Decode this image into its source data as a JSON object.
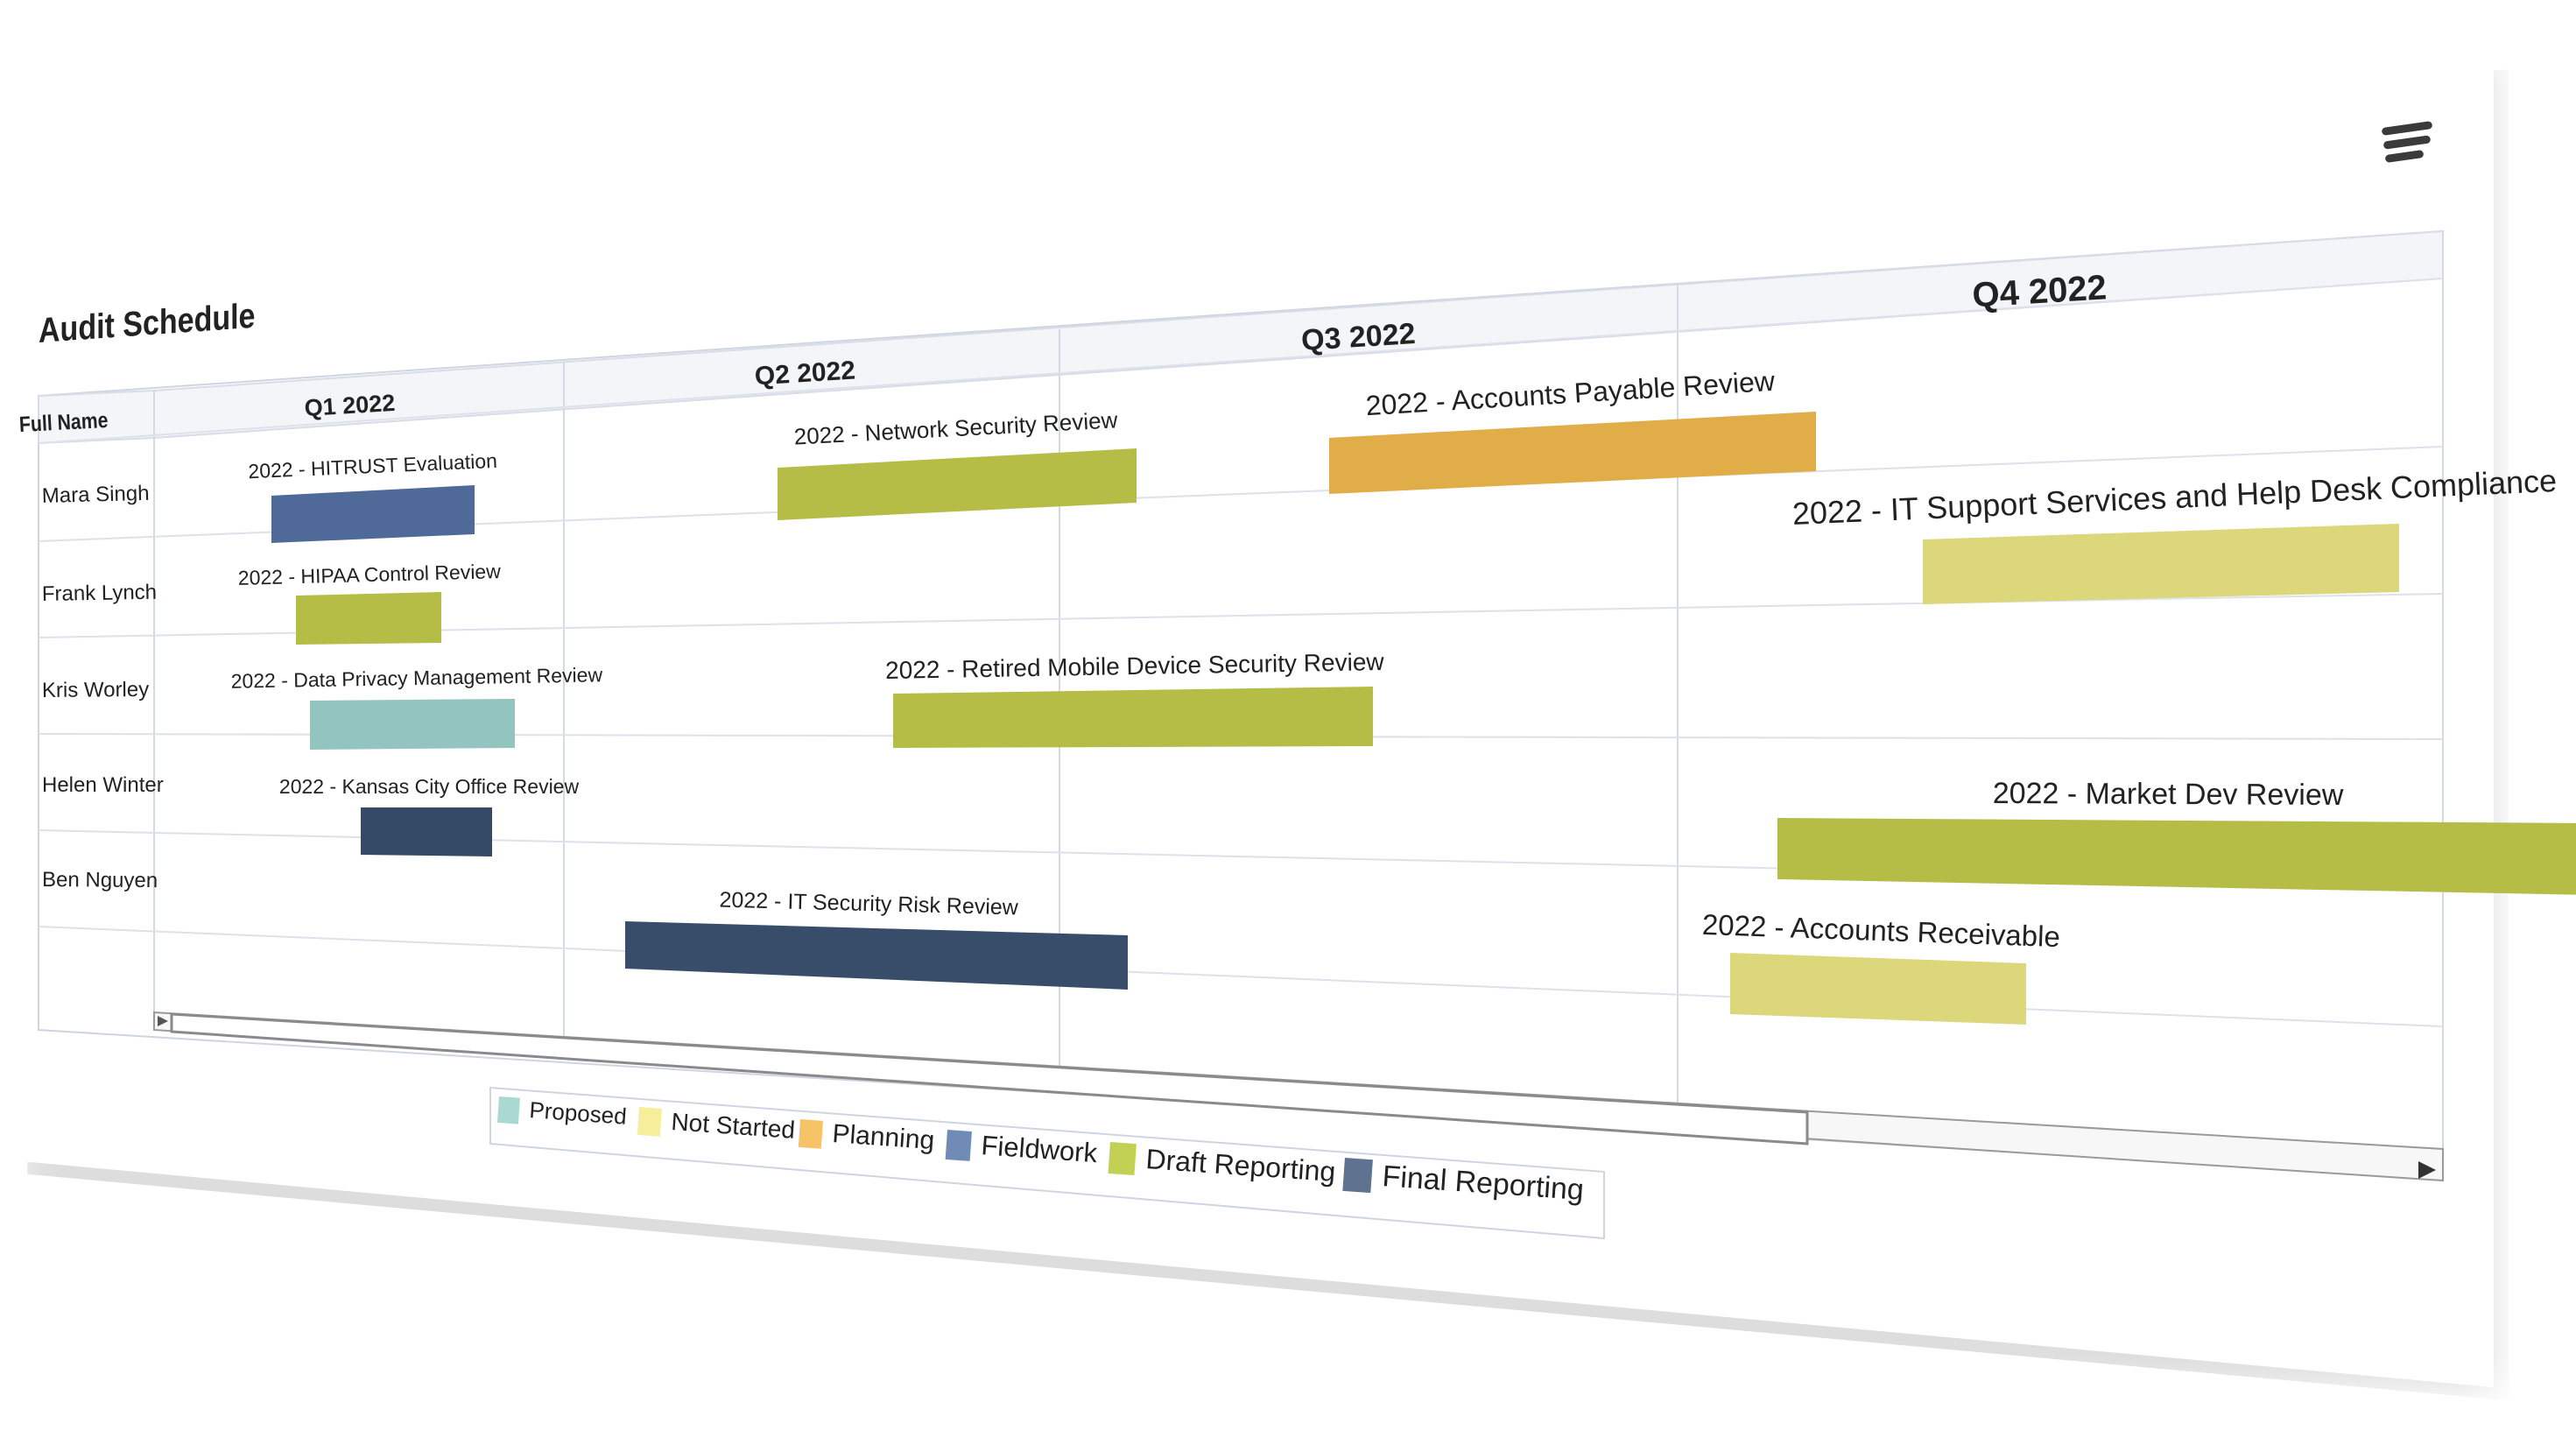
{
  "title": "Audit Schedule",
  "columns": {
    "name_header": "Full Name"
  },
  "quarters": [
    "Q1 2022",
    "Q2 2022",
    "Q3 2022",
    "Q4 2022"
  ],
  "people": [
    "Mara Singh",
    "Frank Lynch",
    "Kris Worley",
    "Helen Winter",
    "Ben Nguyen"
  ],
  "statuses": [
    {
      "name": "Proposed",
      "color": "#a9d9d2"
    },
    {
      "name": "Not Started",
      "color": "#f7ee9c"
    },
    {
      "name": "Planning",
      "color": "#f6c467"
    },
    {
      "name": "Fieldwork",
      "color": "#6f8bb6"
    },
    {
      "name": "Draft Reporting",
      "color": "#c2d054"
    },
    {
      "name": "Final Reporting",
      "color": "#5f7391"
    }
  ],
  "tasks": [
    {
      "label": "2022 - HITRUST Evaluation",
      "person": "Mara Singh",
      "color": "#4f6a98"
    },
    {
      "label": "2022 - Network Security Review",
      "person": "Mara Singh",
      "color": "#b5bd47"
    },
    {
      "label": "2022 - Accounts Payable Review",
      "person": "Mara Singh",
      "color": "#e0ad48"
    },
    {
      "label": "2022 - IT Support Services and Help Desk Compliance",
      "person": "Frank Lynch",
      "color": "#dcd77a"
    },
    {
      "label": "2022 - HIPAA Control Review",
      "person": "Frank Lynch",
      "color": "#b5bd47"
    },
    {
      "label": "2022 - Data Privacy Management Review",
      "person": "Kris Worley",
      "color": "#94c4c0"
    },
    {
      "label": "2022 - Retired Mobile Device Security Review",
      "person": "Kris Worley",
      "color": "#b5bd47"
    },
    {
      "label": "2022 - Kansas City Office Review",
      "person": "Helen Winter",
      "color": "#354a66"
    },
    {
      "label": "2022 - Market Dev Review",
      "person": "Helen Winter",
      "color": "#b5bd47"
    },
    {
      "label": "2022 - IT Security Risk Review",
      "person": "Ben Nguyen",
      "color": "#384d6a"
    },
    {
      "label": "2022 - Accounts Receivable",
      "person": "Ben Nguyen",
      "color": "#dcd77a"
    }
  ]
}
